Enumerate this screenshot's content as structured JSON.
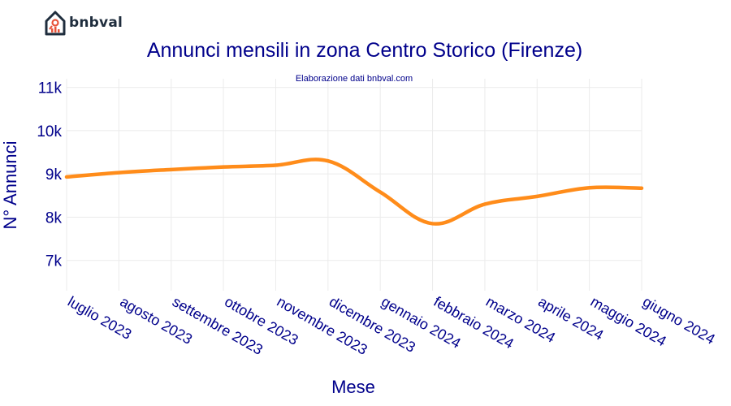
{
  "brand": {
    "name": "bnbval"
  },
  "colors": {
    "line": "#ff8c1a",
    "text": "#00008b",
    "grid": "#ebebeb",
    "logo": "#1f2d3d",
    "logo_accent": "#e8533a"
  },
  "chart_data": {
    "type": "line",
    "title": "Annunci mensili in zona Centro Storico (Firenze)",
    "subtitle": "Elaborazione dati bnbval.com",
    "xlabel": "Mese",
    "ylabel": "N° Annunci",
    "categories": [
      "luglio 2023",
      "agosto 2023",
      "settembre 2023",
      "ottobre 2023",
      "novembre 2023",
      "dicembre 2023",
      "gennaio 2024",
      "febbraio 2024",
      "marzo 2024",
      "aprile 2024",
      "maggio 2024",
      "giugno 2024"
    ],
    "series": [
      {
        "values": [
          8930,
          9030,
          9100,
          9160,
          9200,
          9300,
          8580,
          7850,
          8300,
          8480,
          8680,
          8670
        ]
      }
    ],
    "yticks": [
      7000,
      8000,
      9000,
      10000,
      11000
    ],
    "ytick_labels": [
      "7k",
      "8k",
      "9k",
      "10k",
      "11k"
    ],
    "ylim": [
      6300,
      11200
    ],
    "grid": true,
    "legend": "none"
  }
}
